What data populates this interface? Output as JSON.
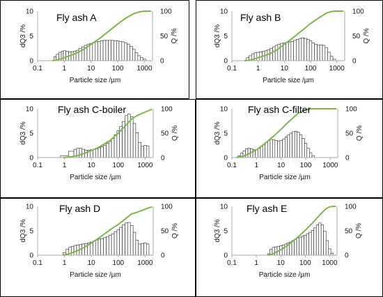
{
  "chart_data": [
    {
      "type": "bar",
      "title": "Fly ash A",
      "xlabel": "Particle size /µm",
      "ylabel": "dQ3 /%",
      "y2label": "Q /%",
      "xscale": "log",
      "xlim": [
        0.1,
        2000
      ],
      "ylim": [
        0,
        10
      ],
      "y2lim": [
        0,
        100
      ],
      "xticks": [
        "0.1",
        "1",
        "10",
        "100",
        "1000"
      ],
      "yticks": [
        "0",
        "5",
        "10"
      ],
      "y2ticks": [
        "0",
        "50",
        "100"
      ],
      "bars": {
        "x": [
          0.45,
          0.55,
          0.7,
          0.85,
          1.0,
          1.3,
          1.6,
          2.0,
          2.5,
          3.0,
          4.0,
          5.0,
          6.3,
          8.0,
          10,
          13,
          16,
          20,
          25,
          32,
          40,
          50,
          63,
          80,
          100,
          125,
          160,
          200,
          250,
          320,
          400,
          500,
          630,
          800,
          1000
        ],
        "values": [
          0.8,
          1.3,
          1.7,
          1.9,
          2.0,
          1.9,
          1.8,
          1.8,
          1.9,
          2.1,
          2.5,
          2.8,
          3.1,
          3.3,
          3.5,
          3.7,
          3.8,
          3.9,
          4.0,
          4.1,
          4.1,
          4.1,
          4.1,
          4.0,
          4.0,
          3.9,
          3.8,
          3.6,
          3.3,
          2.9,
          2.3,
          1.6,
          1.0,
          0.6,
          0.3
        ]
      },
      "cumulative": {
        "name": "Q",
        "color": "#7ab648",
        "x": [
          0.35,
          0.5,
          1,
          2,
          3,
          5,
          10,
          20,
          50,
          100,
          200,
          400,
          700,
          1000,
          1300,
          1800
        ],
        "values": [
          0,
          1,
          6,
          12,
          16,
          22,
          33,
          44,
          61,
          74,
          86,
          95,
          99,
          100,
          100,
          100
        ]
      }
    },
    {
      "type": "bar",
      "title": "Fly ash B",
      "xlabel": "Particle size /µm",
      "ylabel": "dQ3 /%",
      "y2label": "Q /%",
      "xscale": "log",
      "xlim": [
        0.1,
        2000
      ],
      "ylim": [
        0,
        10
      ],
      "y2lim": [
        0,
        100
      ],
      "xticks": [
        "0.1",
        "1",
        "10",
        "100",
        "1000"
      ],
      "yticks": [
        "0",
        "5",
        "10"
      ],
      "y2ticks": [
        "0",
        "50",
        "100"
      ],
      "bars": {
        "x": [
          0.4,
          0.5,
          0.63,
          0.8,
          1.0,
          1.3,
          1.6,
          2.0,
          2.5,
          3.2,
          4.0,
          5.0,
          6.3,
          8.0,
          10,
          13,
          16,
          20,
          25,
          32,
          40,
          50,
          63,
          80,
          100,
          125,
          160,
          200,
          250,
          320,
          400,
          500,
          630,
          800
        ],
        "values": [
          0.6,
          1.0,
          1.4,
          1.6,
          1.7,
          1.8,
          1.9,
          2.0,
          2.2,
          2.5,
          2.8,
          3.1,
          3.3,
          3.5,
          3.6,
          3.7,
          3.8,
          3.9,
          4.1,
          4.3,
          4.5,
          4.6,
          4.5,
          4.3,
          4.0,
          3.6,
          3.3,
          3.2,
          3.2,
          3.1,
          2.6,
          1.7,
          0.9,
          0.3
        ]
      },
      "cumulative": {
        "name": "Q",
        "color": "#7ab648",
        "x": [
          0.3,
          0.5,
          1,
          2,
          3,
          5,
          10,
          20,
          50,
          100,
          200,
          400,
          600,
          800,
          1000,
          1800
        ],
        "values": [
          0,
          1,
          6,
          11,
          15,
          21,
          33,
          45,
          62,
          75,
          86,
          96,
          99,
          100,
          100,
          100
        ]
      }
    },
    {
      "type": "bar",
      "title": "Fly ash C-boiler",
      "xlabel": "Particle size /µm",
      "ylabel": "dQ3 /%",
      "y2label": "Q /%",
      "xscale": "log",
      "xlim": [
        0.1,
        2000
      ],
      "ylim": [
        0,
        10
      ],
      "y2lim": [
        0,
        100
      ],
      "xticks": [
        "0.1",
        "1",
        "10",
        "100",
        "1000"
      ],
      "yticks": [
        "0",
        "5",
        "10"
      ],
      "y2ticks": [
        "0",
        "50",
        "100"
      ],
      "bars": {
        "x": [
          1.0,
          2.0,
          2.5,
          3.2,
          4.0,
          5.0,
          6.3,
          8.0,
          10,
          13,
          16,
          20,
          25,
          32,
          40,
          50,
          63,
          80,
          100,
          125,
          160,
          200,
          250,
          320,
          400,
          500,
          630,
          800,
          1000,
          1250
        ],
        "values": [
          0.4,
          1.3,
          1.7,
          1.9,
          1.9,
          1.7,
          1.5,
          1.5,
          1.6,
          1.7,
          1.8,
          2.0,
          2.2,
          2.5,
          2.9,
          3.3,
          3.9,
          4.7,
          5.5,
          6.4,
          7.4,
          8.6,
          8.9,
          8.4,
          7.0,
          5.1,
          3.1,
          2.3,
          2.5,
          2.4
        ]
      },
      "cumulative": {
        "name": "Q",
        "color": "#7ab648",
        "x": [
          0.9,
          1.5,
          3,
          5,
          10,
          20,
          50,
          100,
          200,
          300,
          500,
          800,
          1200,
          1800
        ],
        "values": [
          0,
          1,
          4,
          8,
          14,
          22,
          35,
          50,
          67,
          78,
          86,
          91,
          95,
          99
        ]
      }
    },
    {
      "type": "bar",
      "title": "Fly ash C-filter",
      "xlabel": "Particle size /µm",
      "ylabel": "dQ3 /%",
      "y2label": "Q /%",
      "xscale": "log",
      "xlim": [
        0.1,
        2000
      ],
      "ylim": [
        0,
        10
      ],
      "y2lim": [
        0,
        100
      ],
      "xticks": [
        "0.1",
        "1",
        "10",
        "100",
        "1000"
      ],
      "yticks": [
        "0",
        "5",
        "10"
      ],
      "y2ticks": [
        "0",
        "50",
        "100"
      ],
      "bars": {
        "x": [
          0.2,
          0.25,
          0.32,
          0.4,
          0.5,
          0.63,
          0.8,
          1.0,
          1.3,
          1.6,
          2.0,
          2.5,
          3.2,
          4.0,
          5.0,
          6.3,
          8.0,
          10,
          13,
          16,
          20,
          25,
          32,
          40,
          50,
          63,
          80,
          100,
          125,
          160,
          200
        ],
        "values": [
          0.4,
          0.9,
          1.4,
          1.8,
          1.9,
          1.8,
          1.6,
          1.6,
          1.9,
          2.3,
          2.7,
          3.1,
          3.5,
          3.7,
          3.7,
          3.5,
          3.4,
          3.5,
          3.8,
          4.2,
          4.6,
          5.0,
          5.3,
          5.4,
          5.2,
          4.7,
          3.9,
          2.9,
          1.9,
          1.0,
          0.4
        ]
      },
      "cumulative": {
        "name": "Q",
        "color": "#7ab648",
        "x": [
          0.15,
          0.3,
          0.5,
          1,
          2,
          5,
          10,
          20,
          50,
          100,
          200,
          400,
          1000,
          1800
        ],
        "values": [
          0,
          3,
          8,
          16,
          27,
          44,
          58,
          73,
          91,
          98,
          100,
          100,
          100,
          100
        ]
      }
    },
    {
      "type": "bar",
      "title": "Fly ash D",
      "xlabel": "Particle size /µm",
      "ylabel": "dQ3 /%",
      "y2label": "Q /%",
      "xscale": "log",
      "xlim": [
        0.1,
        2000
      ],
      "ylim": [
        0,
        10
      ],
      "y2lim": [
        0,
        100
      ],
      "xticks": [
        "0.1",
        "1",
        "10",
        "100",
        "1000"
      ],
      "yticks": [
        "0",
        "5",
        "10"
      ],
      "y2ticks": [
        "0",
        "50",
        "100"
      ],
      "bars": {
        "x": [
          1.0,
          1.3,
          1.6,
          2.0,
          2.5,
          3.2,
          4.0,
          5.0,
          6.3,
          8.0,
          10,
          13,
          16,
          20,
          25,
          32,
          40,
          50,
          63,
          80,
          100,
          125,
          160,
          200,
          250,
          320,
          400,
          500,
          630,
          800,
          1000,
          1250
        ],
        "values": [
          0.5,
          1.2,
          1.6,
          1.8,
          2.0,
          2.1,
          2.2,
          2.3,
          2.4,
          2.5,
          2.7,
          2.9,
          3.1,
          3.3,
          3.4,
          3.6,
          3.8,
          4.1,
          4.4,
          4.8,
          5.2,
          5.7,
          6.2,
          6.6,
          6.7,
          6.1,
          4.7,
          3.1,
          2.3,
          2.4,
          2.5,
          2.3
        ]
      },
      "cumulative": {
        "name": "Q",
        "color": "#7ab648",
        "x": [
          0.9,
          1.5,
          3,
          5,
          10,
          20,
          50,
          100,
          200,
          300,
          500,
          800,
          1200,
          1800
        ],
        "values": [
          0,
          3,
          9,
          15,
          25,
          36,
          52,
          63,
          76,
          84,
          88,
          92,
          96,
          99
        ]
      }
    },
    {
      "type": "bar",
      "title": "Fly ash E",
      "xlabel": "Particle size /µm",
      "ylabel": "dQ3 /%",
      "y2label": "Q /%",
      "xscale": "log",
      "xlim": [
        0.1,
        2000
      ],
      "ylim": [
        0,
        10
      ],
      "y2lim": [
        0,
        100
      ],
      "xticks": [
        "0.1",
        "1",
        "10",
        "100",
        "1000"
      ],
      "yticks": [
        "0",
        "5",
        "10"
      ],
      "y2ticks": [
        "0",
        "50",
        "100"
      ],
      "bars": {
        "x": [
          3.2,
          4.0,
          5.0,
          6.3,
          8.0,
          10,
          13,
          16,
          20,
          25,
          32,
          40,
          50,
          63,
          80,
          100,
          125,
          160,
          200,
          250,
          320,
          400,
          500,
          630,
          800,
          1000,
          1250
        ],
        "values": [
          0.3,
          1.2,
          1.6,
          1.7,
          1.8,
          1.9,
          2.1,
          2.3,
          2.5,
          2.7,
          3.0,
          3.3,
          3.5,
          3.7,
          3.9,
          4.1,
          4.4,
          4.7,
          5.1,
          5.6,
          6.2,
          6.6,
          6.2,
          4.9,
          3.0,
          1.3,
          0.4
        ]
      },
      "cumulative": {
        "name": "Q",
        "color": "#7ab648",
        "x": [
          3,
          5,
          10,
          20,
          50,
          100,
          200,
          400,
          700,
          1000,
          1300,
          1800
        ],
        "values": [
          0,
          3,
          11,
          21,
          37,
          51,
          66,
          83,
          95,
          99,
          100,
          100
        ]
      }
    }
  ]
}
